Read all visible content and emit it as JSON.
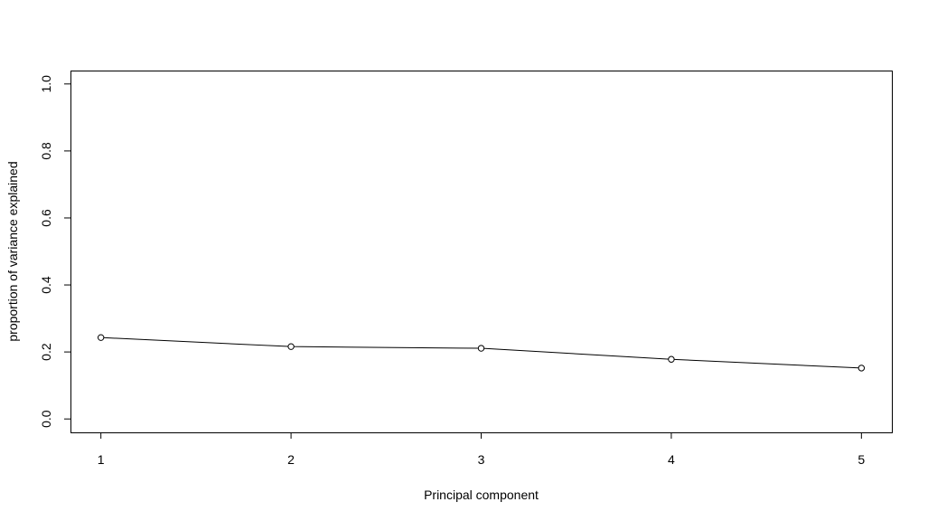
{
  "chart_data": {
    "type": "line",
    "title": "",
    "xlabel": "Principal component",
    "ylabel": "proportion of variance explained",
    "x": [
      1,
      2,
      3,
      4,
      5
    ],
    "y": [
      0.243,
      0.216,
      0.211,
      0.178,
      0.152
    ],
    "xlim": [
      0.84,
      5.16
    ],
    "ylim": [
      -0.04,
      1.04
    ],
    "xticks": [
      1,
      2,
      3,
      4,
      5
    ],
    "xtick_labels": [
      "1",
      "2",
      "3",
      "4",
      "5"
    ],
    "yticks": [
      0.0,
      0.2,
      0.4,
      0.6,
      0.8,
      1.0
    ],
    "ytick_labels": [
      "0.0",
      "0.2",
      "0.4",
      "0.6",
      "0.8",
      "1.0"
    ],
    "marker": "open-circle",
    "grid": false,
    "legend": "none",
    "colors": {
      "line": "#000000",
      "marker_fill": "#ffffff",
      "background": "#ffffff"
    }
  }
}
